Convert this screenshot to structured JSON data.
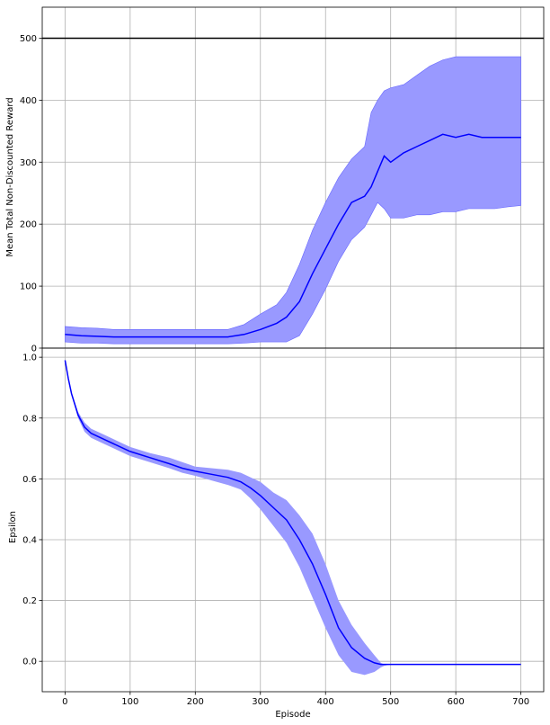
{
  "chart_data": [
    {
      "type": "line",
      "ylabel": "Mean Total Non-Discounted Reward",
      "xlabel": "",
      "xlim": [
        -35,
        735
      ],
      "ylim": [
        0,
        550
      ],
      "xticks": [
        0,
        100,
        200,
        300,
        400,
        500,
        600,
        700
      ],
      "yticks": [
        0,
        100,
        200,
        300,
        400,
        500
      ],
      "grid": true,
      "reference_line": {
        "y": 500,
        "color": "#000000"
      },
      "series": [
        {
          "color": "#0000ff",
          "band_color": "#9999ff",
          "x": [
            0,
            25,
            50,
            75,
            100,
            125,
            150,
            175,
            200,
            225,
            250,
            275,
            300,
            325,
            340,
            360,
            380,
            400,
            420,
            440,
            460,
            470,
            480,
            490,
            500,
            520,
            540,
            560,
            580,
            600,
            620,
            640,
            660,
            680,
            700
          ],
          "mean": [
            22,
            20,
            19,
            18,
            18,
            18,
            18,
            18,
            18,
            18,
            18,
            22,
            30,
            40,
            50,
            75,
            120,
            160,
            200,
            235,
            245,
            260,
            285,
            310,
            300,
            315,
            325,
            335,
            345,
            340,
            345,
            340,
            340,
            340,
            340
          ],
          "lower": [
            10,
            8,
            8,
            7,
            7,
            7,
            7,
            7,
            7,
            7,
            7,
            8,
            10,
            10,
            10,
            20,
            55,
            95,
            140,
            175,
            195,
            215,
            235,
            225,
            210,
            210,
            215,
            215,
            220,
            220,
            225,
            225,
            225,
            228,
            230
          ],
          "upper": [
            35,
            33,
            32,
            30,
            30,
            30,
            30,
            30,
            30,
            30,
            30,
            38,
            55,
            70,
            90,
            135,
            190,
            235,
            275,
            305,
            325,
            380,
            400,
            415,
            420,
            425,
            440,
            455,
            465,
            470,
            470,
            470,
            470,
            470,
            470
          ]
        }
      ]
    },
    {
      "type": "line",
      "ylabel": "Epsilon",
      "xlabel": "Episode",
      "xlim": [
        -35,
        735
      ],
      "ylim": [
        -0.1,
        1.03
      ],
      "xticks": [
        0,
        100,
        200,
        300,
        400,
        500,
        600,
        700
      ],
      "yticks": [
        0.0,
        0.2,
        0.4,
        0.6,
        0.8,
        1.0
      ],
      "grid": true,
      "series": [
        {
          "color": "#0000ff",
          "band_color": "#9999ff",
          "x": [
            0,
            5,
            10,
            20,
            30,
            40,
            60,
            80,
            100,
            130,
            160,
            180,
            200,
            225,
            250,
            270,
            285,
            300,
            320,
            340,
            360,
            380,
            400,
            420,
            440,
            460,
            475,
            485,
            490,
            500,
            600,
            700
          ],
          "mean": [
            0.99,
            0.93,
            0.88,
            0.81,
            0.77,
            0.75,
            0.73,
            0.71,
            0.69,
            0.67,
            0.65,
            0.635,
            0.625,
            0.615,
            0.605,
            0.59,
            0.57,
            0.545,
            0.505,
            0.465,
            0.4,
            0.32,
            0.22,
            0.11,
            0.045,
            0.01,
            -0.005,
            -0.01,
            -0.01,
            -0.01,
            -0.01,
            -0.01
          ],
          "lower": [
            0.99,
            0.93,
            0.875,
            0.8,
            0.755,
            0.735,
            0.715,
            0.695,
            0.675,
            0.655,
            0.635,
            0.62,
            0.61,
            0.595,
            0.58,
            0.565,
            0.535,
            0.5,
            0.445,
            0.39,
            0.31,
            0.21,
            0.11,
            0.02,
            -0.035,
            -0.045,
            -0.035,
            -0.02,
            -0.015,
            -0.01,
            -0.01,
            -0.01
          ],
          "upper": [
            0.99,
            0.935,
            0.885,
            0.82,
            0.785,
            0.765,
            0.745,
            0.725,
            0.705,
            0.685,
            0.67,
            0.655,
            0.64,
            0.635,
            0.63,
            0.62,
            0.605,
            0.59,
            0.555,
            0.53,
            0.48,
            0.42,
            0.32,
            0.2,
            0.12,
            0.06,
            0.02,
            -0.005,
            -0.01,
            -0.01,
            -0.01,
            -0.01
          ]
        }
      ]
    }
  ]
}
